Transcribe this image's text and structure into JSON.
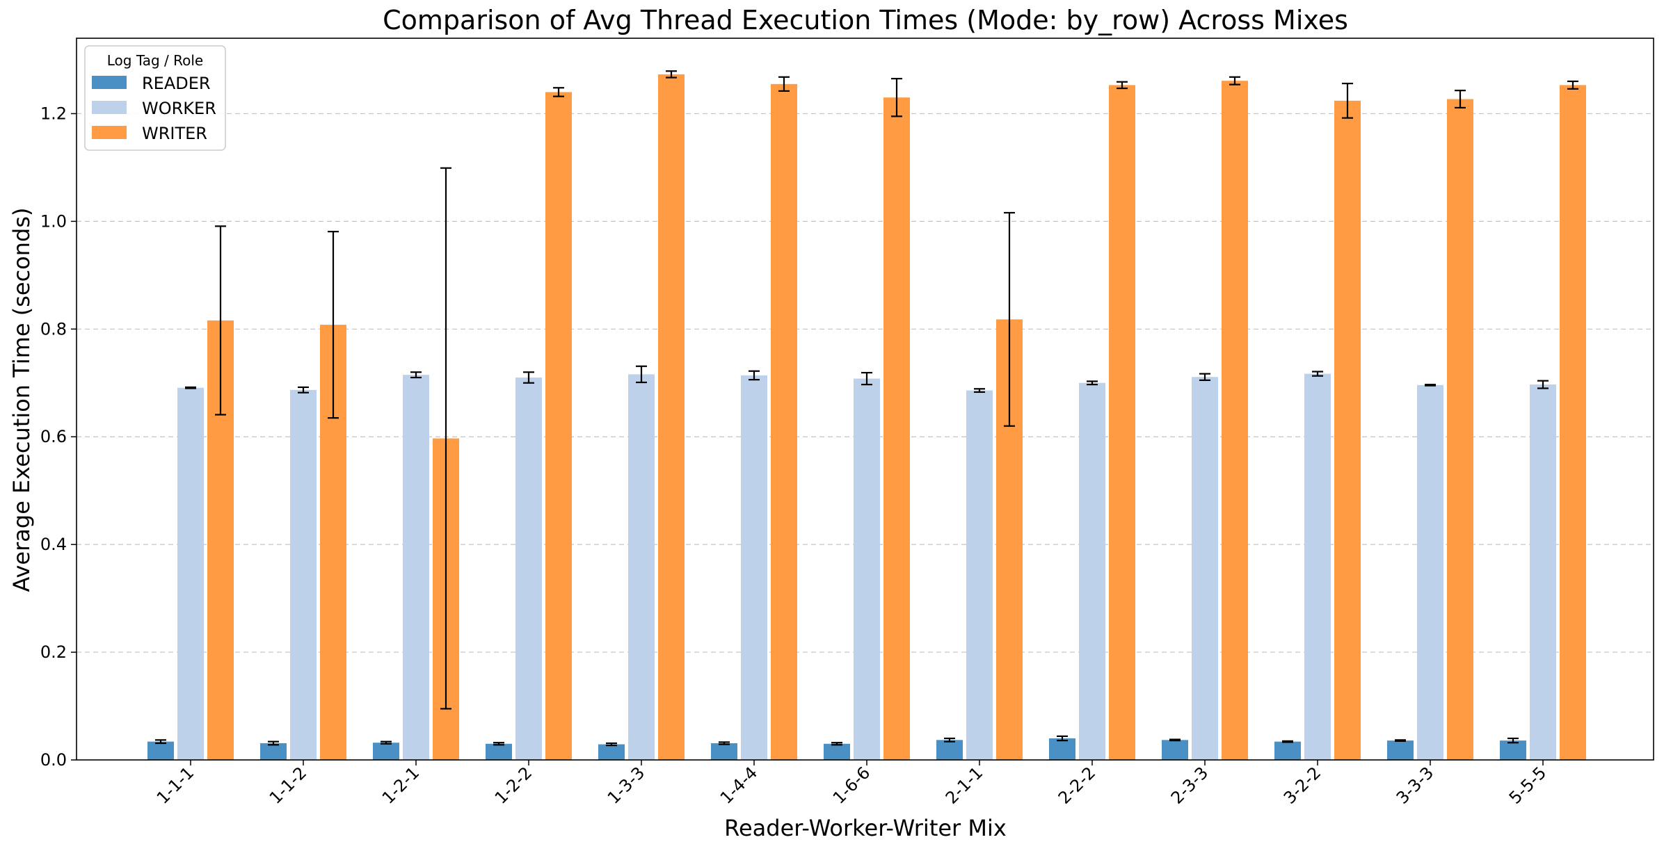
{
  "chart_data": {
    "type": "bar",
    "title": "Comparison of Avg Thread Execution Times (Mode: by_row) Across Mixes",
    "xlabel": "Reader-Worker-Writer Mix",
    "ylabel": "Average Execution Time (seconds)",
    "ylim": [
      0,
      1.34
    ],
    "yticks": [
      "0.0",
      "0.2",
      "0.4",
      "0.6",
      "0.8",
      "1.0",
      "1.2"
    ],
    "grid": "y-dashed",
    "legend": {
      "title": "Log Tag / Role",
      "placement": "top-left"
    },
    "categories": [
      "1-1-1",
      "1-1-2",
      "1-2-1",
      "1-2-2",
      "1-3-3",
      "1-4-4",
      "1-6-6",
      "2-1-1",
      "2-2-2",
      "2-3-3",
      "3-2-2",
      "3-3-3",
      "5-5-5"
    ],
    "series": [
      {
        "name": "READER",
        "color": "#4a90c4",
        "values": [
          0.034,
          0.031,
          0.032,
          0.03,
          0.029,
          0.031,
          0.03,
          0.037,
          0.04,
          0.037,
          0.034,
          0.036,
          0.036
        ],
        "errors": [
          0.003,
          0.003,
          0.002,
          0.002,
          0.002,
          0.002,
          0.002,
          0.003,
          0.004,
          0.001,
          0.001,
          0.001,
          0.004
        ]
      },
      {
        "name": "WORKER",
        "color": "#bdd1ea",
        "values": [
          0.691,
          0.687,
          0.715,
          0.71,
          0.716,
          0.714,
          0.708,
          0.686,
          0.7,
          0.711,
          0.717,
          0.696,
          0.697
        ],
        "errors": [
          0.001,
          0.005,
          0.005,
          0.01,
          0.015,
          0.008,
          0.011,
          0.003,
          0.003,
          0.006,
          0.004,
          0.001,
          0.007
        ]
      },
      {
        "name": "WRITER",
        "color": "#fe9b43",
        "values": [
          0.816,
          0.808,
          0.597,
          1.24,
          1.273,
          1.255,
          1.23,
          0.818,
          1.253,
          1.261,
          1.224,
          1.227,
          1.253
        ],
        "errors": [
          0.175,
          0.173,
          0.502,
          0.008,
          0.006,
          0.013,
          0.035,
          0.198,
          0.006,
          0.007,
          0.032,
          0.016,
          0.007
        ]
      }
    ]
  }
}
